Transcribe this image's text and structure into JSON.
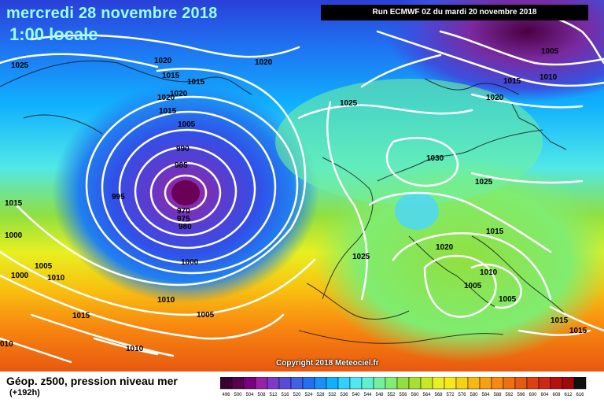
{
  "header": {
    "date": "mercredi 28 novembre 2018",
    "time": "1:00 locale",
    "run": "Run ECMWF 0Z du mardi 20 novembre 2018"
  },
  "footer": {
    "title": "Géop. z500, pression niveau mer",
    "subtitle": "(+192h)",
    "copyright": "Copyright 2018 Meteociel.fr"
  },
  "legend": {
    "values": [
      496,
      500,
      504,
      508,
      512,
      516,
      520,
      524,
      528,
      532,
      536,
      540,
      544,
      548,
      552,
      556,
      560,
      564,
      568,
      572,
      576,
      580,
      584,
      588,
      592,
      596,
      600,
      604,
      608,
      612,
      616
    ],
    "colors": [
      "#3a0030",
      "#5a0050",
      "#7a0080",
      "#9a20a8",
      "#7a3cc8",
      "#5a4ad8",
      "#4060e8",
      "#2070f0",
      "#1890f8",
      "#10b0ff",
      "#30d0ff",
      "#50e8f0",
      "#60f0d0",
      "#70f0a0",
      "#80ec70",
      "#90e040",
      "#a8e030",
      "#c8e820",
      "#e8f020",
      "#f8e818",
      "#f8d010",
      "#f8b810",
      "#f8a010",
      "#f88810",
      "#f07010",
      "#e85810",
      "#e04010",
      "#d02810",
      "#b81010",
      "#a00808",
      "#101010"
    ]
  },
  "isobars": [
    "1025",
    "1020",
    "1015",
    "1015",
    "1020",
    "1020",
    "1015",
    "1005",
    "990",
    "985",
    "995",
    "970",
    "975",
    "980",
    "1000",
    "1015",
    "1000",
    "1005",
    "1000",
    "1010",
    "1010",
    "1005",
    "1015",
    "1010",
    "010",
    "1020",
    "1025",
    "1005",
    "1010",
    "1015",
    "1020",
    "1030",
    "1025",
    "1025",
    "1015",
    "1020",
    "1010",
    "1005",
    "1005",
    "1015",
    "1015"
  ]
}
